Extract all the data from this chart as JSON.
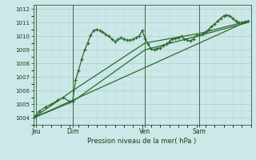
{
  "background_color": "#cce8e8",
  "plot_bg_color": "#cce8e8",
  "grid_major_color": "#aacccc",
  "grid_minor_color": "#bbdddd",
  "line_color": "#2d6a2d",
  "xlabel": "Pression niveau de la mer( hPa )",
  "ylim": [
    1003.5,
    1012.3
  ],
  "xlim": [
    0,
    72
  ],
  "yticks": [
    1004,
    1005,
    1006,
    1007,
    1008,
    1009,
    1010,
    1011,
    1012
  ],
  "xtick_labels": [
    "Jeu",
    "Dim",
    "Ven",
    "Sam"
  ],
  "xtick_positions": [
    1,
    13,
    37,
    55
  ],
  "vline_positions": [
    1,
    13,
    37,
    55
  ],
  "series1_x": [
    0,
    2,
    4,
    6,
    8,
    10,
    12,
    13,
    14,
    15,
    16,
    17,
    18,
    19,
    20,
    21,
    22,
    23,
    24,
    25,
    26,
    27,
    28,
    29,
    30,
    31,
    32,
    33,
    34,
    35,
    36,
    37,
    38,
    39,
    40,
    41,
    42,
    43,
    44,
    45,
    46,
    47,
    48,
    49,
    50,
    51,
    52,
    53,
    54,
    55,
    56,
    57,
    58,
    59,
    60,
    61,
    62,
    63,
    64,
    65,
    66,
    67,
    68,
    69,
    70,
    71
  ],
  "series1_y": [
    1004.0,
    1004.5,
    1004.8,
    1005.0,
    1005.3,
    1005.5,
    1005.2,
    1005.2,
    1006.8,
    1007.5,
    1008.3,
    1009.0,
    1009.5,
    1010.1,
    1010.4,
    1010.5,
    1010.4,
    1010.3,
    1010.15,
    1010.0,
    1009.8,
    1009.6,
    1009.75,
    1009.9,
    1009.8,
    1009.7,
    1009.7,
    1009.75,
    1009.9,
    1010.0,
    1010.4,
    1009.85,
    1009.4,
    1009.05,
    1009.0,
    1009.1,
    1009.15,
    1009.3,
    1009.45,
    1009.6,
    1009.8,
    1009.85,
    1009.9,
    1010.0,
    1009.8,
    1009.7,
    1009.65,
    1009.8,
    1010.05,
    1010.05,
    1010.15,
    1010.3,
    1010.5,
    1010.7,
    1010.9,
    1011.1,
    1011.3,
    1011.5,
    1011.55,
    1011.5,
    1011.3,
    1011.1,
    1011.0,
    1011.0,
    1011.05,
    1011.1
  ],
  "trend1_x": [
    0,
    71
  ],
  "trend1_y": [
    1004.0,
    1011.1
  ],
  "trend2_x": [
    0,
    13,
    37,
    55,
    71
  ],
  "trend2_y": [
    1004.0,
    1005.2,
    1009.0,
    1010.05,
    1011.0
  ],
  "trend3_x": [
    0,
    13,
    37,
    55,
    71
  ],
  "trend3_y": [
    1004.0,
    1006.0,
    1009.5,
    1010.2,
    1011.1
  ]
}
